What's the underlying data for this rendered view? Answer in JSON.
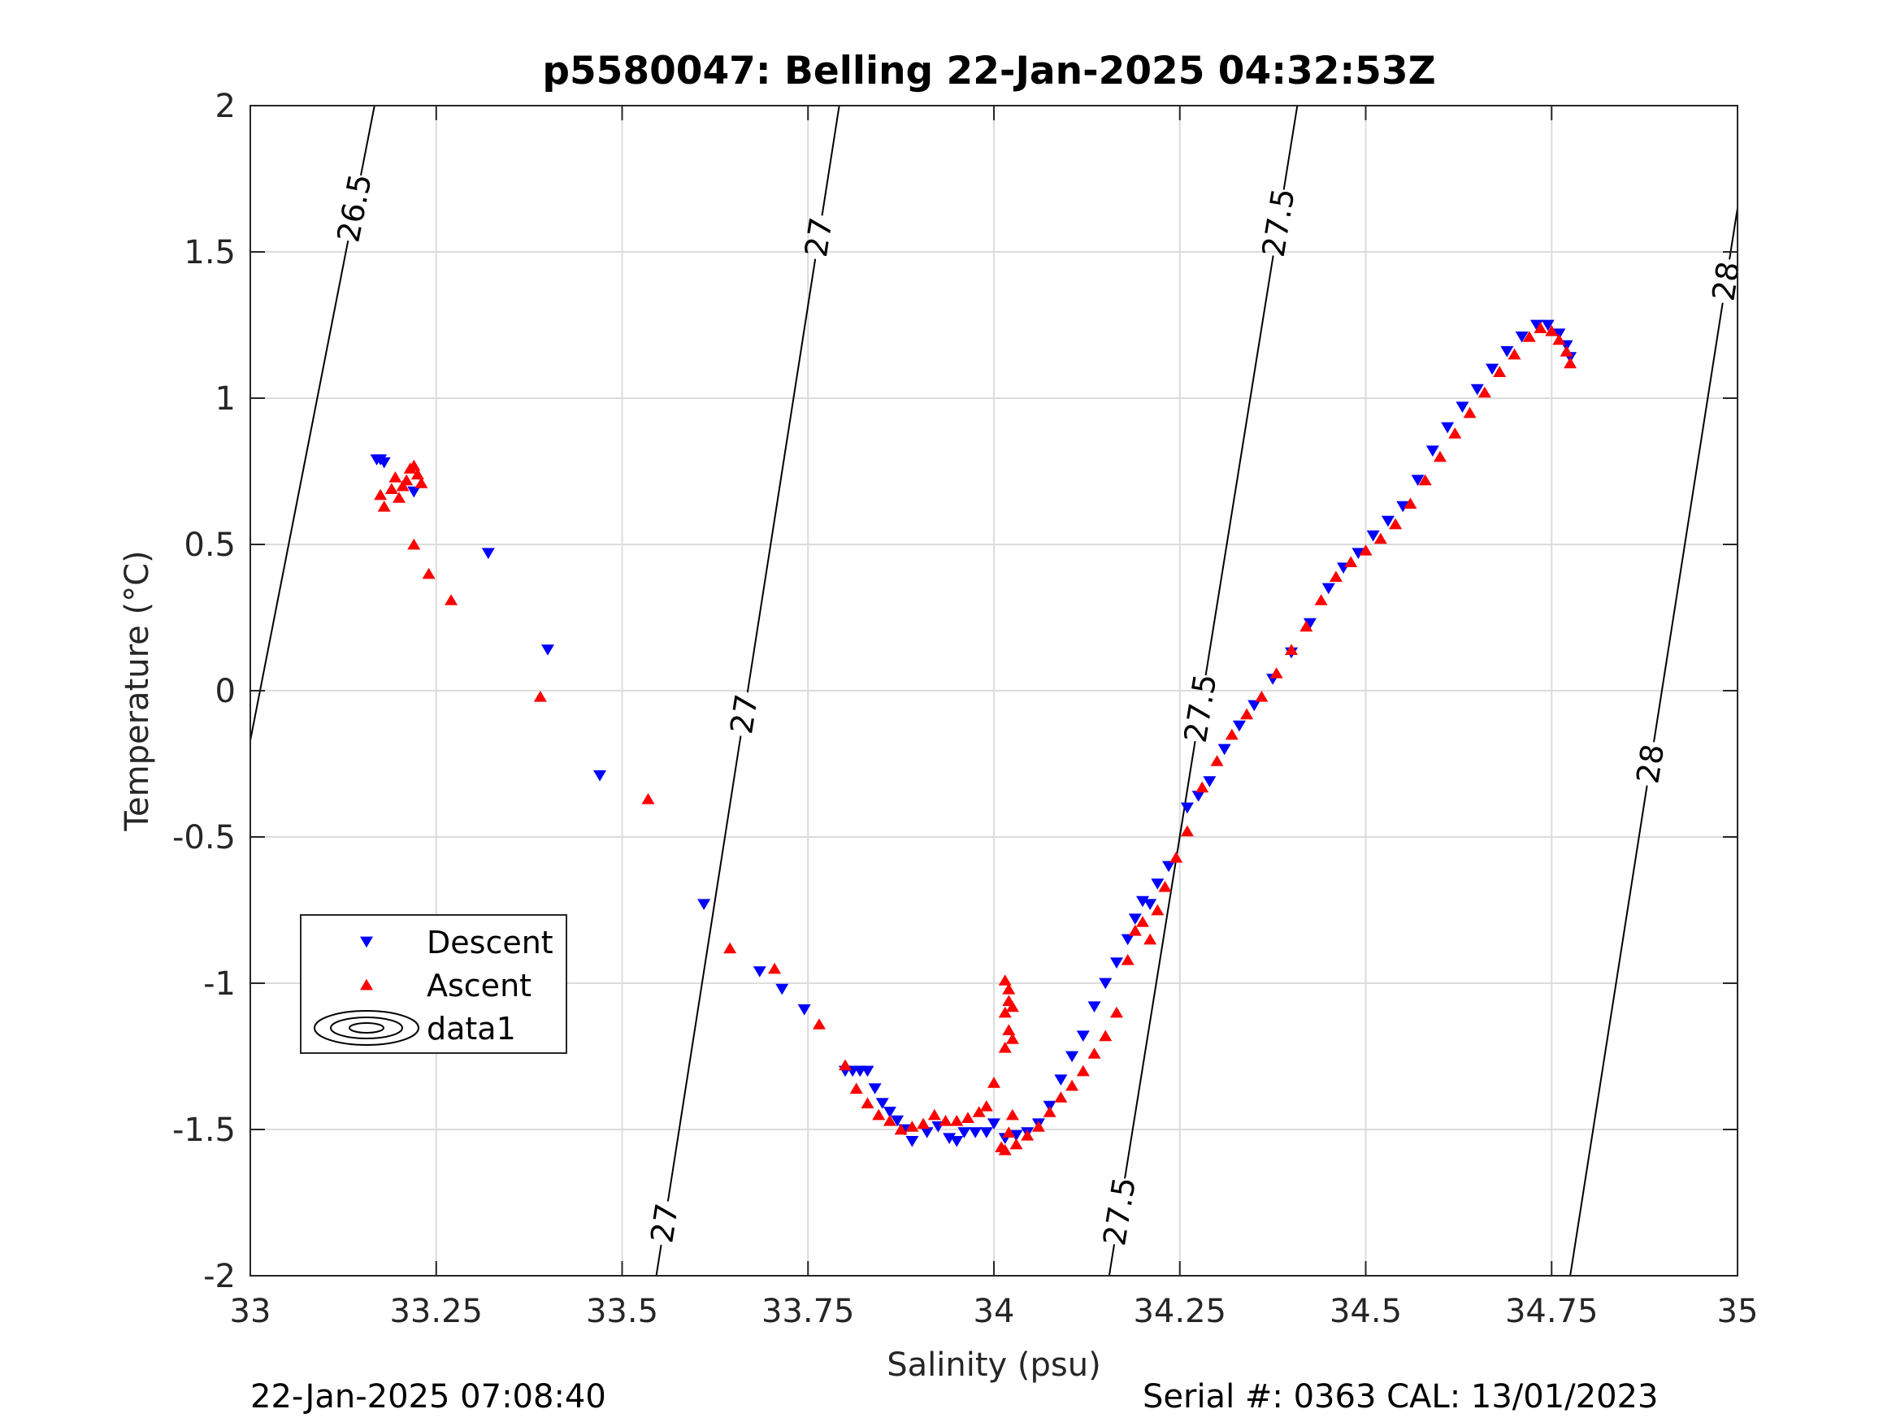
{
  "chart_data": {
    "type": "scatter",
    "title": "p5580047: Belling 22-Jan-2025 04:32:53Z",
    "xlabel": "Salinity (psu)",
    "ylabel": "Temperature (°C)",
    "xlim": [
      33,
      35
    ],
    "ylim": [
      -2,
      2
    ],
    "xticks": [
      33,
      33.25,
      33.5,
      33.75,
      34,
      34.25,
      34.5,
      34.75,
      35
    ],
    "xtick_labels": [
      "33",
      "33.25",
      "33.5",
      "33.75",
      "34",
      "34.25",
      "34.5",
      "34.75",
      "35"
    ],
    "yticks": [
      -2,
      -1.5,
      -1,
      -0.5,
      0,
      0.5,
      1,
      1.5,
      2
    ],
    "ytick_labels": [
      "-2",
      "-1.5",
      "-1",
      "-0.5",
      "0",
      "0.5",
      "1",
      "1.5",
      "2"
    ],
    "grid": true,
    "legend_position": "lower-left",
    "legend": [
      {
        "label": "Descent",
        "marker": "triangle-down",
        "color": "#0000ff"
      },
      {
        "label": "Ascent",
        "marker": "triangle-up",
        "color": "#ff0000"
      },
      {
        "label": "data1",
        "marker": "contour",
        "color": "#000000"
      }
    ],
    "series": [
      {
        "name": "Descent",
        "color": "#0000ff",
        "marker": "triangle-down",
        "points": [
          [
            33.17,
            0.79
          ],
          [
            33.175,
            0.79
          ],
          [
            33.18,
            0.78
          ],
          [
            33.22,
            0.68
          ],
          [
            33.32,
            0.47
          ],
          [
            33.4,
            0.14
          ],
          [
            33.47,
            -0.29
          ],
          [
            33.61,
            -0.73
          ],
          [
            33.685,
            -0.96
          ],
          [
            33.715,
            -1.02
          ],
          [
            33.745,
            -1.09
          ],
          [
            33.8,
            -1.3
          ],
          [
            33.81,
            -1.3
          ],
          [
            33.82,
            -1.3
          ],
          [
            33.83,
            -1.3
          ],
          [
            33.84,
            -1.36
          ],
          [
            33.85,
            -1.41
          ],
          [
            33.86,
            -1.44
          ],
          [
            33.87,
            -1.47
          ],
          [
            33.88,
            -1.5
          ],
          [
            33.89,
            -1.54
          ],
          [
            33.91,
            -1.51
          ],
          [
            33.925,
            -1.49
          ],
          [
            33.94,
            -1.53
          ],
          [
            33.95,
            -1.54
          ],
          [
            33.96,
            -1.51
          ],
          [
            33.975,
            -1.51
          ],
          [
            33.99,
            -1.51
          ],
          [
            34.0,
            -1.48
          ],
          [
            34.015,
            -1.53
          ],
          [
            34.03,
            -1.52
          ],
          [
            34.045,
            -1.51
          ],
          [
            34.06,
            -1.48
          ],
          [
            34.075,
            -1.42
          ],
          [
            34.09,
            -1.33
          ],
          [
            34.105,
            -1.25
          ],
          [
            34.12,
            -1.18
          ],
          [
            34.135,
            -1.08
          ],
          [
            34.15,
            -1.0
          ],
          [
            34.165,
            -0.93
          ],
          [
            34.18,
            -0.85
          ],
          [
            34.19,
            -0.78
          ],
          [
            34.2,
            -0.72
          ],
          [
            34.21,
            -0.73
          ],
          [
            34.22,
            -0.66
          ],
          [
            34.235,
            -0.6
          ],
          [
            34.26,
            -0.4
          ],
          [
            34.275,
            -0.36
          ],
          [
            34.29,
            -0.31
          ],
          [
            34.31,
            -0.2
          ],
          [
            34.33,
            -0.12
          ],
          [
            34.35,
            -0.05
          ],
          [
            34.375,
            0.04
          ],
          [
            34.4,
            0.13
          ],
          [
            34.425,
            0.23
          ],
          [
            34.45,
            0.35
          ],
          [
            34.47,
            0.42
          ],
          [
            34.49,
            0.47
          ],
          [
            34.51,
            0.53
          ],
          [
            34.53,
            0.58
          ],
          [
            34.55,
            0.63
          ],
          [
            34.57,
            0.72
          ],
          [
            34.59,
            0.82
          ],
          [
            34.61,
            0.9
          ],
          [
            34.63,
            0.97
          ],
          [
            34.65,
            1.03
          ],
          [
            34.67,
            1.1
          ],
          [
            34.69,
            1.16
          ],
          [
            34.71,
            1.21
          ],
          [
            34.73,
            1.25
          ],
          [
            34.745,
            1.25
          ],
          [
            34.76,
            1.22
          ],
          [
            34.77,
            1.18
          ],
          [
            34.775,
            1.14
          ]
        ]
      },
      {
        "name": "Ascent",
        "color": "#ff0000",
        "marker": "triangle-up",
        "points": [
          [
            33.175,
            0.67
          ],
          [
            33.18,
            0.63
          ],
          [
            33.19,
            0.69
          ],
          [
            33.195,
            0.73
          ],
          [
            33.2,
            0.66
          ],
          [
            33.205,
            0.7
          ],
          [
            33.21,
            0.72
          ],
          [
            33.215,
            0.76
          ],
          [
            33.22,
            0.77
          ],
          [
            33.225,
            0.74
          ],
          [
            33.23,
            0.71
          ],
          [
            33.22,
            0.5
          ],
          [
            33.24,
            0.4
          ],
          [
            33.27,
            0.31
          ],
          [
            33.39,
            -0.02
          ],
          [
            33.535,
            -0.37
          ],
          [
            33.645,
            -0.88
          ],
          [
            33.705,
            -0.95
          ],
          [
            33.765,
            -1.14
          ],
          [
            33.8,
            -1.28
          ],
          [
            33.815,
            -1.36
          ],
          [
            33.83,
            -1.41
          ],
          [
            33.845,
            -1.45
          ],
          [
            33.86,
            -1.47
          ],
          [
            33.875,
            -1.5
          ],
          [
            33.89,
            -1.49
          ],
          [
            33.905,
            -1.48
          ],
          [
            33.92,
            -1.45
          ],
          [
            33.935,
            -1.47
          ],
          [
            33.95,
            -1.47
          ],
          [
            33.965,
            -1.46
          ],
          [
            33.98,
            -1.44
          ],
          [
            33.99,
            -1.42
          ],
          [
            34.0,
            -1.34
          ],
          [
            34.01,
            -1.56
          ],
          [
            34.015,
            -1.57
          ],
          [
            34.02,
            -1.51
          ],
          [
            34.025,
            -1.45
          ],
          [
            34.03,
            -1.55
          ],
          [
            34.045,
            -1.52
          ],
          [
            34.06,
            -1.49
          ],
          [
            34.075,
            -1.44
          ],
          [
            34.09,
            -1.39
          ],
          [
            34.105,
            -1.35
          ],
          [
            34.12,
            -1.3
          ],
          [
            34.135,
            -1.24
          ],
          [
            34.15,
            -1.18
          ],
          [
            34.165,
            -1.1
          ],
          [
            34.18,
            -0.92
          ],
          [
            34.19,
            -0.82
          ],
          [
            34.2,
            -0.79
          ],
          [
            34.21,
            -0.85
          ],
          [
            34.22,
            -0.75
          ],
          [
            34.23,
            -0.67
          ],
          [
            34.245,
            -0.57
          ],
          [
            34.26,
            -0.48
          ],
          [
            34.28,
            -0.33
          ],
          [
            34.3,
            -0.24
          ],
          [
            34.32,
            -0.15
          ],
          [
            34.34,
            -0.08
          ],
          [
            34.36,
            -0.02
          ],
          [
            34.38,
            0.06
          ],
          [
            34.4,
            0.14
          ],
          [
            34.42,
            0.22
          ],
          [
            34.44,
            0.31
          ],
          [
            34.46,
            0.39
          ],
          [
            34.48,
            0.44
          ],
          [
            34.5,
            0.48
          ],
          [
            34.52,
            0.52
          ],
          [
            34.54,
            0.57
          ],
          [
            34.56,
            0.64
          ],
          [
            34.58,
            0.72
          ],
          [
            34.6,
            0.8
          ],
          [
            34.62,
            0.88
          ],
          [
            34.64,
            0.95
          ],
          [
            34.66,
            1.02
          ],
          [
            34.68,
            1.09
          ],
          [
            34.7,
            1.15
          ],
          [
            34.72,
            1.21
          ],
          [
            34.735,
            1.24
          ],
          [
            34.75,
            1.23
          ],
          [
            34.76,
            1.2
          ],
          [
            34.77,
            1.16
          ],
          [
            34.775,
            1.12
          ],
          [
            34.015,
            -0.99
          ],
          [
            34.02,
            -1.02
          ],
          [
            34.02,
            -1.06
          ],
          [
            34.015,
            -1.1
          ],
          [
            34.025,
            -1.08
          ],
          [
            34.02,
            -1.16
          ],
          [
            34.015,
            -1.22
          ],
          [
            34.025,
            -1.19
          ]
        ]
      }
    ],
    "isopycnals": [
      {
        "label": "26.5",
        "points": [
          [
            33.0,
            -0.17
          ],
          [
            33.167,
            2.0
          ]
        ],
        "labels_at": [
          1.65
        ]
      },
      {
        "label": "27",
        "points": [
          [
            33.546,
            -2.0
          ],
          [
            33.792,
            2.0
          ]
        ],
        "labels_at": [
          -1.82,
          -0.08,
          1.55
        ]
      },
      {
        "label": "27.5",
        "points": [
          [
            34.155,
            -2.0
          ],
          [
            34.408,
            2.0
          ]
        ],
        "labels_at": [
          -1.78,
          -0.06,
          1.6
        ]
      },
      {
        "label": "28",
        "points": [
          [
            34.775,
            -2.0
          ],
          [
            35.0,
            1.65
          ]
        ],
        "labels_at": [
          -0.25,
          1.4
        ]
      }
    ]
  },
  "footer": {
    "timestamp": "22-Jan-2025 07:08:40",
    "serial": "Serial #: 0363  CAL: 13/01/2023"
  }
}
